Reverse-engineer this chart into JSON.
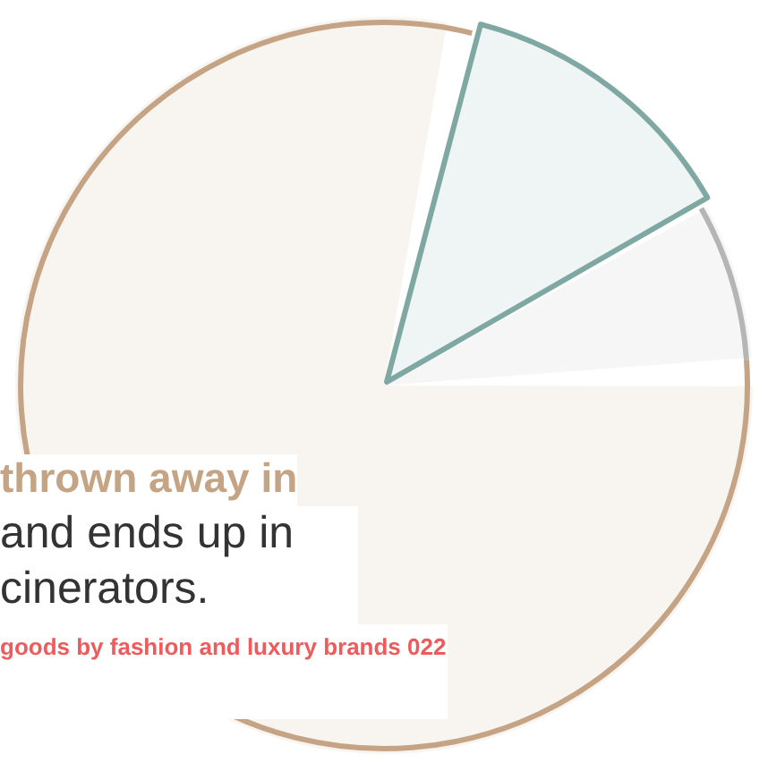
{
  "chart_data": {
    "type": "pie",
    "title": "thrown away in",
    "subtitle": "and ends up in cinerators.",
    "annotations": [
      "goods by fashion and luxury brands 022"
    ],
    "categories": [
      null,
      null,
      null
    ],
    "values": [
      13,
      7,
      80
    ],
    "colors": [
      "#7fa8a3",
      "#b5b5b5",
      "#c4a484"
    ],
    "legend": false
  }
}
